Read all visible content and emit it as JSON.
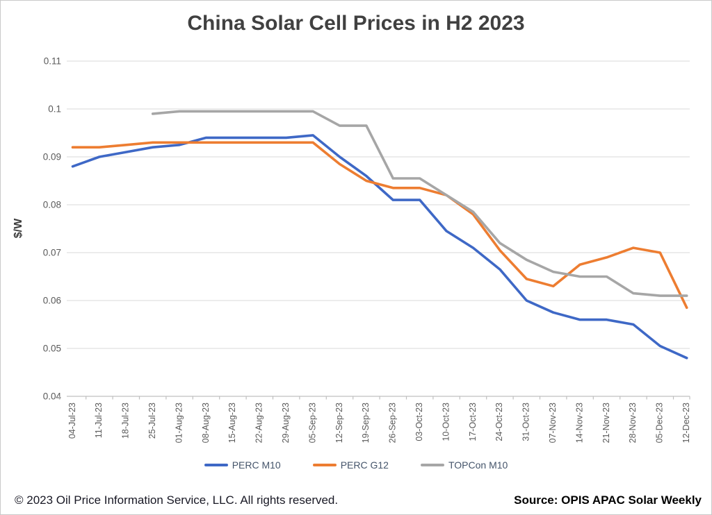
{
  "title": "China Solar Cell Prices in H2 2023",
  "footer": {
    "copyright": "© 2023  Oil Price Information Service, LLC. All rights reserved.",
    "source": "Source: OPIS APAC Solar Weekly"
  },
  "colors": {
    "perc_m10": "#3e68c6",
    "perc_g12": "#ed7d31",
    "topcon_m10": "#a6a6a6",
    "gridline": "#d9d9d9",
    "axis": "#bfbfbf",
    "tick_label": "#595959",
    "title_text": "#404040"
  },
  "chart_data": {
    "type": "line",
    "title": "China Solar Cell Prices in H2 2023",
    "xlabel": "",
    "ylabel": "$/W",
    "ylim": [
      0.04,
      0.11
    ],
    "ytick_labels": [
      "0.11",
      "0.1",
      "0.09",
      "0.08",
      "0.07",
      "0.06",
      "0.05",
      "0.04"
    ],
    "grid": "horizontal",
    "legend_position": "bottom",
    "categories": [
      "04-Jul-23",
      "11-Jul-23",
      "18-Jul-23",
      "25-Jul-23",
      "01-Aug-23",
      "08-Aug-23",
      "15-Aug-23",
      "22-Aug-23",
      "29-Aug-23",
      "05-Sep-23",
      "12-Sep-23",
      "19-Sep-23",
      "26-Sep-23",
      "03-Oct-23",
      "10-Oct-23",
      "17-Oct-23",
      "24-Oct-23",
      "31-Oct-23",
      "07-Nov-23",
      "14-Nov-23",
      "21-Nov-23",
      "28-Nov-23",
      "05-Dec-23",
      "12-Dec-23"
    ],
    "series": [
      {
        "name": "PERC M10",
        "color": "#3e68c6",
        "values": [
          0.088,
          0.09,
          0.091,
          0.092,
          0.0925,
          0.094,
          0.094,
          0.094,
          0.094,
          0.0945,
          0.09,
          0.086,
          0.081,
          0.081,
          0.0745,
          0.071,
          0.0665,
          0.06,
          0.0575,
          0.056,
          0.056,
          0.055,
          0.0505,
          0.048
        ]
      },
      {
        "name": "PERC G12",
        "color": "#ed7d31",
        "values": [
          0.092,
          0.092,
          0.0925,
          0.093,
          0.093,
          0.093,
          0.093,
          0.093,
          0.093,
          0.093,
          0.0885,
          0.085,
          0.0835,
          0.0835,
          0.082,
          0.078,
          0.0705,
          0.0645,
          0.063,
          0.0675,
          0.069,
          0.071,
          0.07,
          0.0585
        ]
      },
      {
        "name": "TOPCon M10",
        "color": "#a6a6a6",
        "values": [
          null,
          null,
          null,
          0.099,
          0.0995,
          0.0995,
          0.0995,
          0.0995,
          0.0995,
          0.0995,
          0.0965,
          0.0965,
          0.0855,
          0.0855,
          0.082,
          0.0785,
          0.072,
          0.0685,
          0.066,
          0.065,
          0.065,
          0.0615,
          0.061,
          0.061
        ]
      }
    ]
  }
}
